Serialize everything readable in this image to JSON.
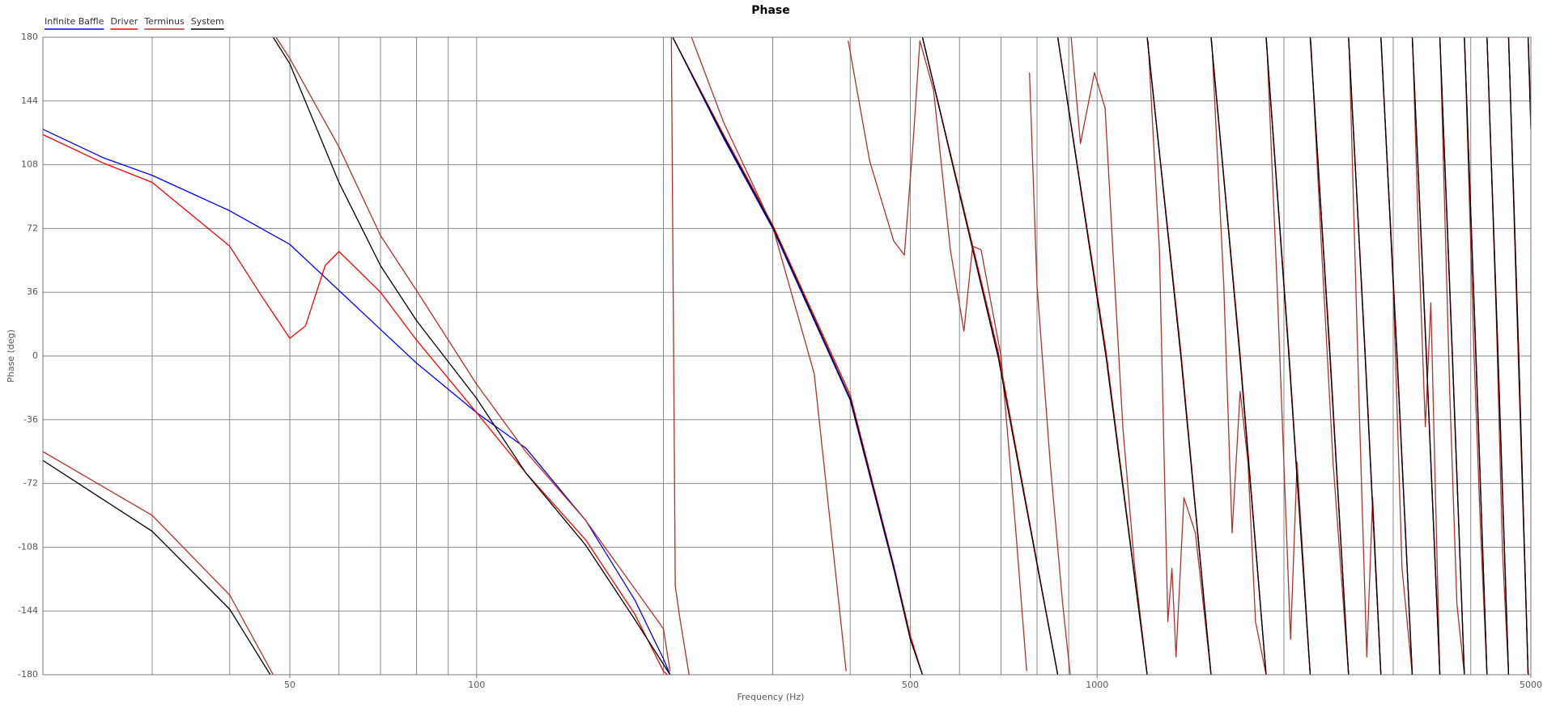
{
  "chart_data": {
    "type": "line",
    "title": "Phase",
    "x_label": "Frequency (Hz)",
    "y_label": "Phase (deg)",
    "x_scale": "log",
    "xlim": [
      20,
      5000
    ],
    "xticks": [
      50,
      100,
      500,
      1000,
      5000
    ],
    "xgrid": [
      20,
      30,
      40,
      50,
      60,
      70,
      80,
      90,
      100,
      200,
      300,
      400,
      500,
      600,
      700,
      800,
      900,
      1000,
      2000,
      3000,
      4000,
      5000
    ],
    "ylim": [
      -180,
      180
    ],
    "yticks": [
      -180,
      -144,
      -108,
      -72,
      -36,
      0,
      36,
      72,
      108,
      144,
      180
    ],
    "grid": true,
    "legend_position": "top-left",
    "series": [
      {
        "name": "Infinite Baffle",
        "color": "#0000ff",
        "x": [
          20,
          25,
          30,
          40,
          50,
          60,
          70,
          80,
          100,
          120,
          150,
          180,
          200,
          205,
          205,
          207,
          250,
          300,
          400,
          470,
          500,
          523,
          523,
          523,
          693,
          864,
          864,
          864,
          1034,
          1204,
          1204,
          1204,
          1365,
          1526,
          1526,
          1526,
          1699,
          1872,
          1872,
          1872,
          2038,
          2205,
          2205,
          2205,
          2373,
          2542,
          2542,
          2542,
          2704,
          2866,
          2866,
          2866,
          3043,
          3220,
          3220,
          3220,
          3393,
          3567,
          3567,
          3567,
          3737,
          3907,
          3907,
          3907,
          4078,
          4249,
          4249,
          4249,
          4426,
          4603,
          4603,
          4603,
          4780,
          4950,
          4950,
          4950,
          5000
        ],
        "values": [
          128,
          112,
          102,
          82,
          63,
          37,
          15,
          -4,
          -32,
          -52,
          -93,
          -138,
          -171,
          -180,
          null,
          180,
          123,
          72,
          -25,
          -120,
          -160,
          -180,
          null,
          180,
          0,
          -180,
          null,
          180,
          0,
          -180,
          null,
          180,
          0,
          -180,
          null,
          180,
          0,
          -180,
          null,
          180,
          0,
          -180,
          null,
          180,
          0,
          -180,
          null,
          180,
          0,
          -180,
          null,
          180,
          0,
          -180,
          null,
          180,
          0,
          -180,
          null,
          180,
          0,
          -180,
          null,
          180,
          0,
          -180,
          null,
          180,
          0,
          -180,
          null,
          180,
          0,
          -180,
          null,
          180,
          130
        ]
      },
      {
        "name": "Driver",
        "color": "#ff0000",
        "x": [
          20,
          25,
          30,
          40,
          45,
          50,
          53,
          57,
          60,
          70,
          80,
          100,
          120,
          150,
          180,
          200,
          203,
          203,
          207,
          250,
          300,
          400,
          470,
          500,
          523,
          523,
          523,
          693,
          864,
          864,
          864,
          1034,
          1204,
          1204,
          1204,
          1365,
          1526,
          1526,
          1526,
          1699,
          1872,
          1872,
          1872,
          2038,
          2205,
          2205,
          2205,
          2373,
          2542,
          2542,
          2542,
          2704,
          2866,
          2866,
          2866,
          3043,
          3220,
          3220,
          3220,
          3393,
          3567,
          3567,
          3567,
          3737,
          3907,
          3907,
          3907,
          4078,
          4249,
          4249,
          4249,
          4426,
          4603,
          4603,
          4603,
          4780,
          4950,
          4950,
          4950,
          5000
        ],
        "values": [
          125,
          109,
          98,
          62,
          34,
          10,
          17,
          51,
          59,
          36,
          9,
          -32,
          -66,
          -104,
          -146,
          -178,
          -180,
          null,
          180,
          125,
          74,
          -22,
          -118,
          -158,
          -180,
          null,
          180,
          2,
          -180,
          null,
          180,
          2,
          -180,
          null,
          180,
          2,
          -180,
          null,
          180,
          2,
          -180,
          null,
          180,
          2,
          -180,
          null,
          180,
          2,
          -180,
          null,
          180,
          2,
          -180,
          null,
          180,
          2,
          -180,
          null,
          180,
          2,
          -180,
          null,
          180,
          2,
          -180,
          null,
          180,
          2,
          -180,
          null,
          180,
          2,
          -180,
          null,
          180,
          2,
          -180,
          null,
          180,
          132
        ]
      },
      {
        "name": "Terminus",
        "color": "#b5302a",
        "x": [
          20,
          30,
          40,
          47,
          47,
          47.5,
          50,
          60,
          70,
          80,
          100,
          120,
          150,
          200,
          205,
          205,
          206,
          209,
          213,
          220,
          220,
          222,
          250,
          300,
          350,
          394,
          394,
          397,
          430,
          470,
          489,
          505,
          518,
          545,
          580,
          610,
          630,
          650,
          700,
          740,
          770,
          770,
          778,
          800,
          840,
          880,
          905,
          905,
          908,
          940,
          990,
          1030,
          1060,
          1100,
          1150,
          1204,
          1204,
          1208,
          1260,
          1300,
          1320,
          1340,
          1380,
          1440,
          1526,
          1526,
          1530,
          1600,
          1650,
          1700,
          1750,
          1800,
          1872,
          1872,
          1876,
          1950,
          2050,
          2100,
          2205,
          2205,
          2210,
          2300,
          2400,
          2542,
          2542,
          2546,
          2650,
          2720,
          2780,
          2866,
          2866,
          2870,
          3000,
          3100,
          3220,
          3220,
          3224,
          3300,
          3380,
          3450,
          3567,
          3567,
          3570,
          3700,
          3800,
          3907,
          3907,
          3910,
          4050,
          4150,
          4249,
          4249,
          4252,
          4400,
          4500,
          4603,
          4603,
          4606,
          4780,
          4950,
          4950,
          4952,
          5000
        ],
        "values": [
          -54,
          -90,
          -135,
          -180,
          null,
          180,
          168,
          118,
          68,
          37,
          -16,
          -54,
          -93,
          -154,
          -178,
          null,
          180,
          -130,
          -150,
          -180,
          null,
          180,
          132,
          73,
          -10,
          -178,
          null,
          178,
          110,
          65,
          57,
          120,
          178,
          150,
          60,
          14,
          62,
          60,
          0,
          -100,
          -178,
          null,
          160,
          40,
          -60,
          -140,
          -180,
          null,
          180,
          120,
          160,
          140,
          60,
          -40,
          -120,
          -180,
          null,
          178,
          60,
          -150,
          -120,
          -170,
          -80,
          -100,
          -180,
          null,
          178,
          40,
          -100,
          -20,
          -60,
          -150,
          -180,
          null,
          178,
          40,
          -160,
          -60,
          -180,
          null,
          178,
          60,
          -60,
          -180,
          null,
          178,
          -40,
          -170,
          -80,
          -180,
          null,
          178,
          40,
          -120,
          -180,
          null,
          178,
          60,
          -40,
          30,
          -180,
          null,
          178,
          -20,
          -140,
          -180,
          null,
          178,
          0,
          -100,
          -180,
          null,
          178,
          20,
          -110,
          -180,
          null,
          178,
          -10,
          -180,
          null,
          178,
          140
        ]
      },
      {
        "name": "System",
        "color": "#000000",
        "x": [
          20,
          30,
          40,
          46.5,
          46.5,
          47,
          50,
          60,
          70,
          80,
          100,
          120,
          150,
          180,
          205,
          205,
          207,
          250,
          300,
          400,
          470,
          500,
          523,
          523,
          523,
          693,
          864,
          864,
          864,
          1034,
          1204,
          1204,
          1204,
          1365,
          1526,
          1526,
          1526,
          1699,
          1872,
          1872,
          1872,
          2038,
          2205,
          2205,
          2205,
          2373,
          2542,
          2542,
          2542,
          2704,
          2866,
          2866,
          2866,
          3043,
          3220,
          3220,
          3220,
          3393,
          3567,
          3567,
          3567,
          3737,
          3907,
          3907,
          3907,
          4078,
          4249,
          4249,
          4249,
          4426,
          4603,
          4603,
          4603,
          4780,
          4950,
          4950,
          4950,
          5000
        ],
        "values": [
          -59,
          -99,
          -143,
          -180,
          null,
          180,
          165,
          98,
          51,
          20,
          -24,
          -66,
          -107,
          -149,
          -180,
          null,
          180,
          124,
          73,
          -24,
          -119,
          -160,
          -180,
          null,
          180,
          -1,
          -180,
          null,
          180,
          -1,
          -180,
          null,
          180,
          -1,
          -180,
          null,
          180,
          -1,
          -180,
          null,
          180,
          -1,
          -180,
          null,
          180,
          -1,
          -180,
          null,
          180,
          -1,
          -180,
          null,
          180,
          -1,
          -180,
          null,
          180,
          -1,
          -180,
          null,
          180,
          -1,
          -180,
          null,
          180,
          -1,
          -180,
          null,
          180,
          -1,
          -180,
          null,
          180,
          -1,
          -180,
          null,
          180,
          128
        ]
      }
    ]
  }
}
